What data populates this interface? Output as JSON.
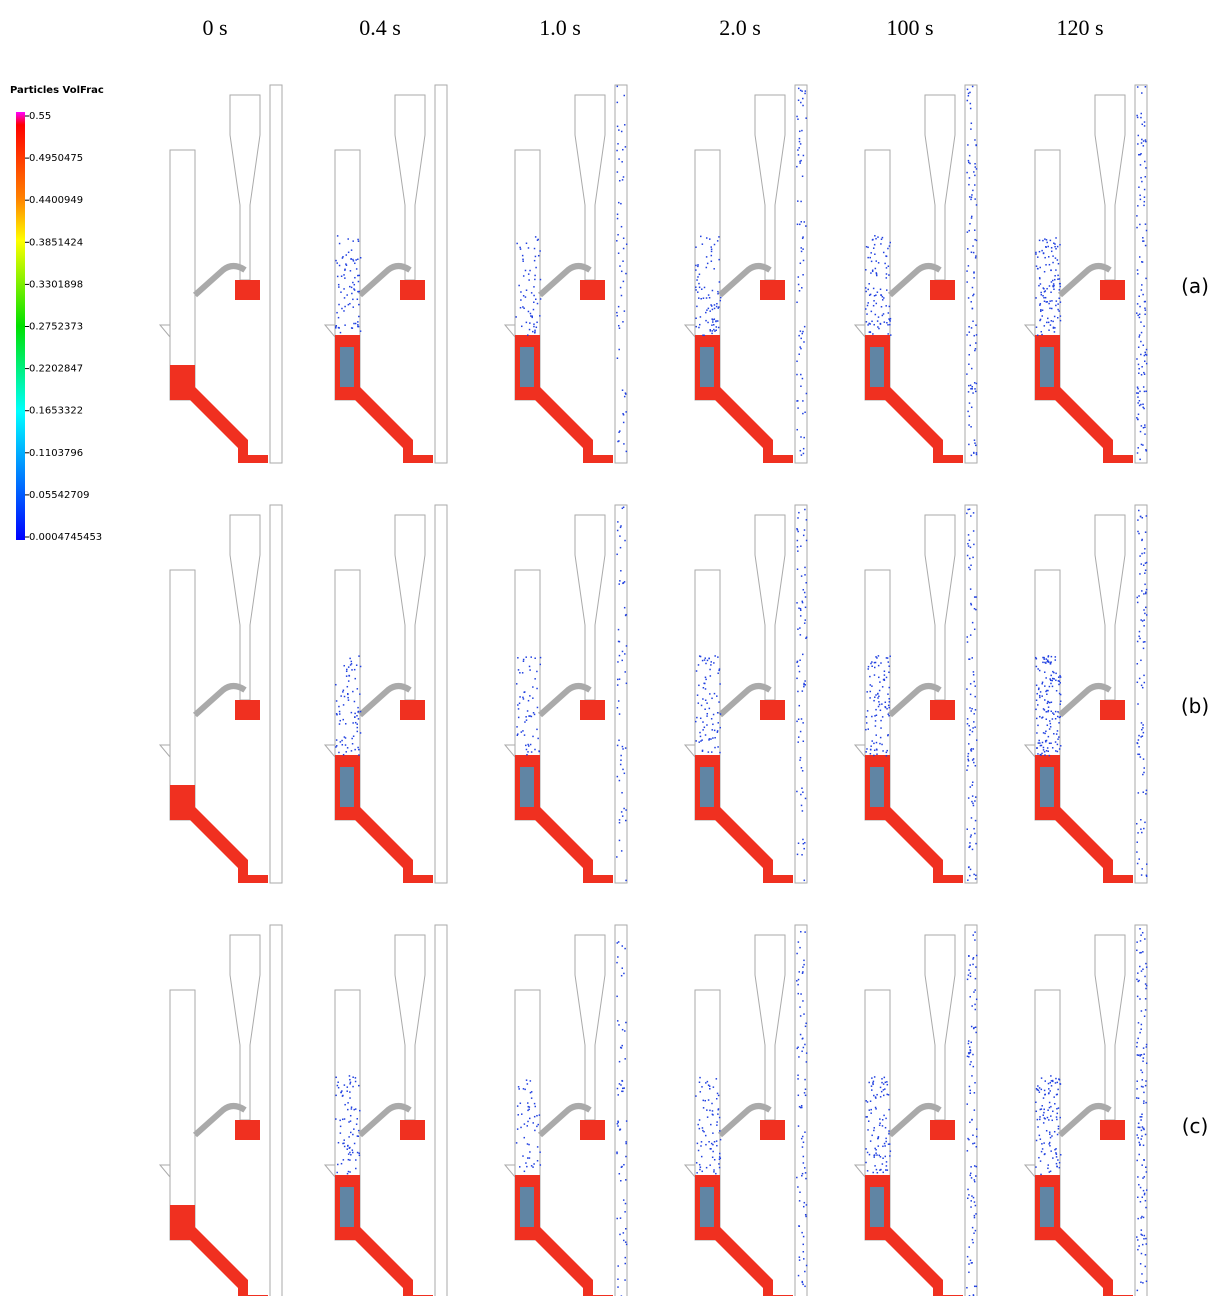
{
  "column_labels": [
    "0 s",
    "0.4 s",
    "1.0 s",
    "2.0 s",
    "100 s",
    "120 s"
  ],
  "row_labels": [
    "(a)",
    "(b)",
    "(c)"
  ],
  "colorbar": {
    "title": "Particles VolFrac",
    "ticks": [
      "0.55",
      "0.4950475",
      "0.4400949",
      "0.3851424",
      "0.3301898",
      "0.2752373",
      "0.2202847",
      "0.1653322",
      "0.1103796",
      "0.05542709",
      "0.0004745453"
    ]
  }
}
